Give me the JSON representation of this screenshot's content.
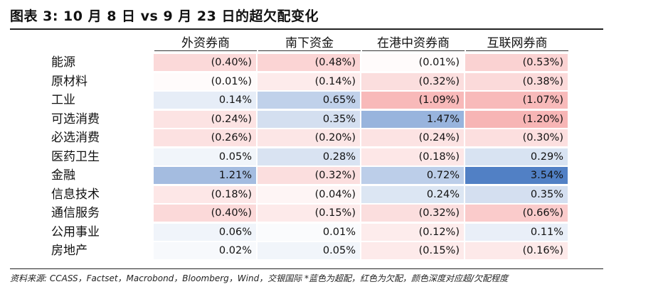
{
  "title": "图表 3: 10 月 8 日 vs 9 月 23 日的超欠配变化",
  "columns": [
    "外资券商",
    "南下资金",
    "在港中资券商",
    "互联网券商"
  ],
  "rows": [
    {
      "label": "能源",
      "values": [
        "(0.40%)",
        "(0.48%)",
        "(0.01%)",
        "(0.53%)"
      ]
    },
    {
      "label": "原材料",
      "values": [
        "(0.01%)",
        "(0.14%)",
        "(0.32%)",
        "(0.38%)"
      ]
    },
    {
      "label": "工业",
      "values": [
        "0.14%",
        "0.65%",
        "(1.09%)",
        "(1.07%)"
      ]
    },
    {
      "label": "可选消费",
      "values": [
        "(0.24%)",
        "0.35%",
        "1.47%",
        "(1.20%)"
      ]
    },
    {
      "label": "必选消费",
      "values": [
        "(0.26%)",
        "(0.20%)",
        "(0.24%)",
        "(0.30%)"
      ]
    },
    {
      "label": "医药卫生",
      "values": [
        "0.05%",
        "0.28%",
        "(0.18%)",
        "0.29%"
      ]
    },
    {
      "label": "金融",
      "values": [
        "1.21%",
        "(0.32%)",
        "0.72%",
        "3.54%"
      ]
    },
    {
      "label": "信息技术",
      "values": [
        "(0.18%)",
        "(0.04%)",
        "0.24%",
        "0.35%"
      ]
    },
    {
      "label": "通信服务",
      "values": [
        "(0.40%)",
        "(0.15%)",
        "(0.32%)",
        "(0.66%)"
      ]
    },
    {
      "label": "公用事业",
      "values": [
        "0.06%",
        "0.01%",
        "(0.12%)",
        "0.11%"
      ]
    },
    {
      "label": "房地产",
      "values": [
        "0.02%",
        "0.05%",
        "(0.15%)",
        "(0.16%)"
      ]
    }
  ],
  "colors": {
    "positive": "#4f7fc4",
    "negative": "#f07070"
  },
  "footnote": "资料来源: CCASS，Factset，Macrobond，Bloomberg，Wind，交银国际  *蓝色为超配，红色为欠配，颜色深度对应超/欠配程度"
}
